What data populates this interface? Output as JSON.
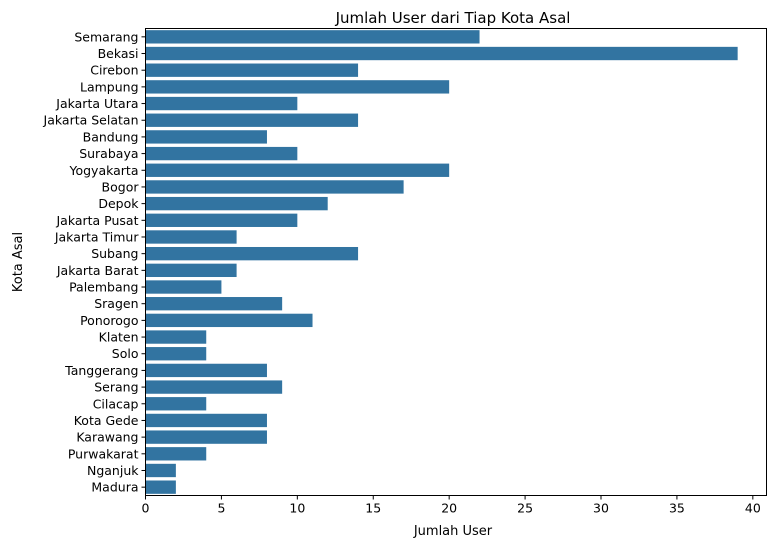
{
  "chart_data": {
    "type": "bar",
    "orientation": "horizontal",
    "title": "Jumlah User dari Tiap Kota Asal",
    "xlabel": "Jumlah User",
    "ylabel": "Kota Asal",
    "xlim": [
      0,
      40.9
    ],
    "xticks": [
      0,
      5,
      10,
      15,
      20,
      25,
      30,
      35,
      40
    ],
    "grid": false,
    "color": "#3274a1",
    "categories": [
      "Semarang",
      "Bekasi",
      "Cirebon",
      "Lampung",
      "Jakarta Utara",
      "Jakarta Selatan",
      "Bandung",
      "Surabaya",
      "Yogyakarta",
      "Bogor",
      "Depok",
      "Jakarta Pusat",
      "Jakarta Timur",
      "Subang",
      "Jakarta Barat",
      "Palembang",
      "Sragen",
      "Ponorogo",
      "Klaten",
      "Solo",
      "Tanggerang",
      "Serang",
      "Cilacap",
      "Kota Gede",
      "Karawang",
      "Purwakarat",
      "Nganjuk",
      "Madura"
    ],
    "values": [
      22,
      39,
      14,
      20,
      10,
      14,
      8,
      10,
      20,
      17,
      12,
      10,
      6,
      14,
      6,
      5,
      9,
      11,
      4,
      4,
      8,
      9,
      4,
      8,
      8,
      4,
      2,
      2
    ]
  }
}
